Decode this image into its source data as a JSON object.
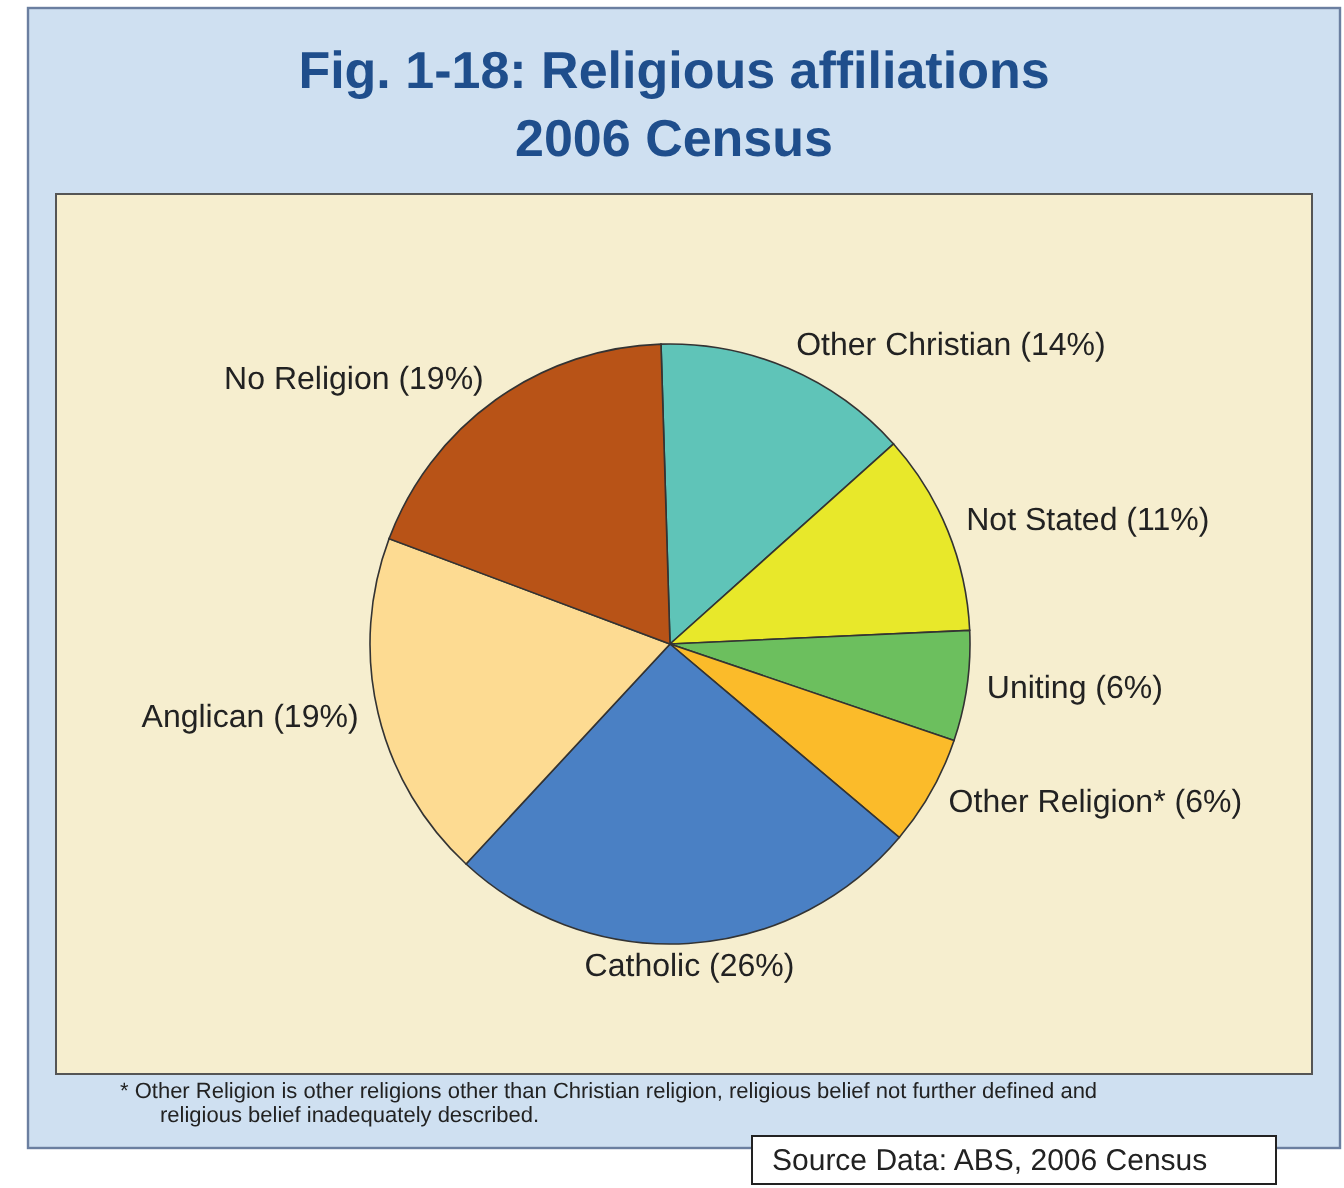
{
  "chart_data": {
    "type": "pie",
    "title": "Fig. 1-18:  Religious affiliations\n2006 Census",
    "categories": [
      "Other Christian",
      "Not Stated",
      "Uniting",
      "Other Religion*",
      "Catholic",
      "Anglican",
      "No Religion"
    ],
    "values": [
      14,
      11,
      6,
      6,
      26,
      19,
      19
    ],
    "value_labels": [
      "(14%)",
      "(11%)",
      "(6%)",
      "(6%)",
      "(26%)",
      "(19%)",
      "(19%)"
    ],
    "colors": [
      "#5fc4b8",
      "#e8e82a",
      "#6cbf5e",
      "#fbbb2a",
      "#4a80c4",
      "#fddb92",
      "#b85317"
    ],
    "annotations": [
      "*  Other Religion is other religions other than Christian religion, religious belief not further defined and\nreligious belief inadequately described.",
      "Source Data: ABS, 2006 Census"
    ]
  }
}
